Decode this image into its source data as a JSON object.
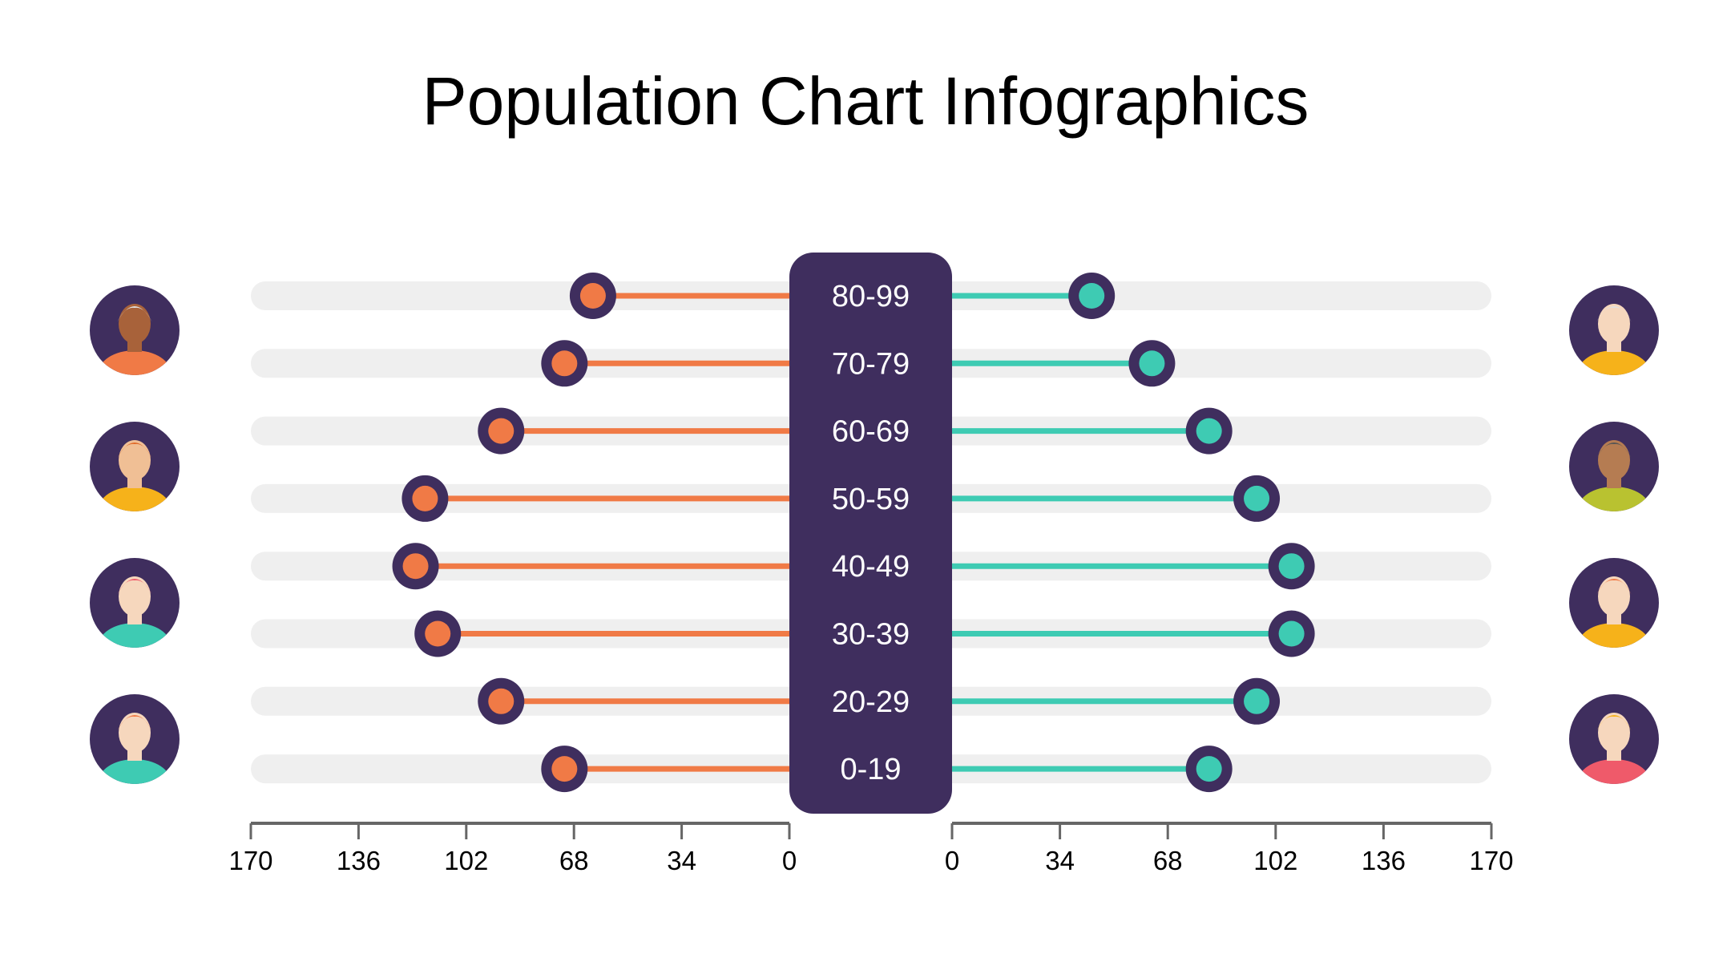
{
  "title": "Population Chart Infographics",
  "colors": {
    "left_series": "#f07a46",
    "right_series": "#3ecbb3",
    "marker_ring": "#3f2e5e",
    "center_panel": "#3f2e5e",
    "track": "#efefef",
    "axis": "#666666"
  },
  "avatars": {
    "left": [
      "elderly-man-avatar-icon",
      "man-avatar-icon",
      "young-man-cap-avatar-icon",
      "boy-avatar-icon"
    ],
    "right": [
      "elderly-woman-avatar-icon",
      "woman-avatar-icon",
      "young-woman-avatar-icon",
      "girl-avatar-icon"
    ]
  },
  "chart_data": {
    "type": "bar",
    "categories": [
      "80-99",
      "70-79",
      "60-69",
      "50-59",
      "40-49",
      "30-39",
      "20-29",
      "0-19"
    ],
    "series": [
      {
        "side": "left",
        "values": [
          62,
          71,
          91,
          115,
          118,
          111,
          91,
          71
        ]
      },
      {
        "side": "right",
        "values": [
          44,
          63,
          81,
          96,
          107,
          107,
          96,
          81
        ]
      }
    ],
    "xlim": [
      0,
      170
    ],
    "left_axis_ticks": [
      "170",
      "136",
      "102",
      "68",
      "34",
      "0"
    ],
    "right_axis_ticks": [
      "0",
      "34",
      "68",
      "102",
      "136",
      "170"
    ],
    "legend": "none",
    "grid": false
  }
}
